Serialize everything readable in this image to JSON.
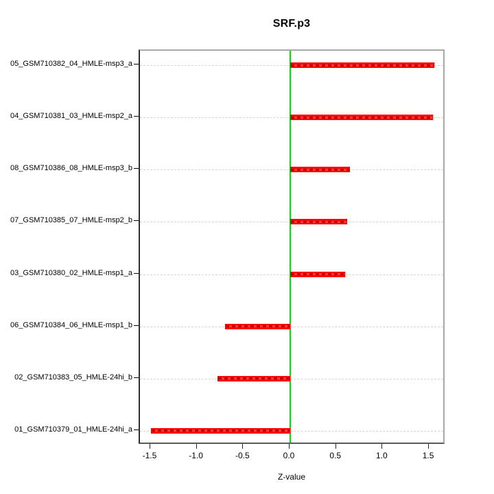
{
  "window": {
    "background": "#ffffff"
  },
  "chart_data": {
    "type": "bar",
    "orientation": "horizontal",
    "title": "SRF.p3",
    "xlabel": "Z-value",
    "ylabel": "",
    "categories": [
      "05_GSM710382_04_HMLE-msp3_a",
      "04_GSM710381_03_HMLE-msp2_a",
      "08_GSM710386_08_HMLE-msp3_b",
      "07_GSM710385_07_HMLE-msp2_b",
      "03_GSM710380_02_HMLE-msp1_a",
      "06_GSM710384_06_HMLE-msp1_b",
      "02_GSM710383_05_HMLE-24hi_b",
      "01_GSM710379_01_HMLE-24hi_a"
    ],
    "values": [
      1.55,
      1.54,
      0.64,
      0.61,
      0.59,
      -0.7,
      -0.78,
      -1.5
    ],
    "xticks": [
      -1.5,
      -1.0,
      -0.5,
      0.0,
      0.5,
      1.0,
      1.5
    ],
    "xtick_labels": [
      "-1.5",
      "-1.0",
      "-0.5",
      "0.0",
      "0.5",
      "1.0",
      "1.5"
    ],
    "xlim": [
      -1.618,
      1.677
    ],
    "reference_line_x": 0.0,
    "bar_color": "#ff0000",
    "zero_line_color": "#00e500",
    "grid_color": "#d4d4d4",
    "grid_style": "dashed horizontal line per category",
    "legend": "none"
  }
}
